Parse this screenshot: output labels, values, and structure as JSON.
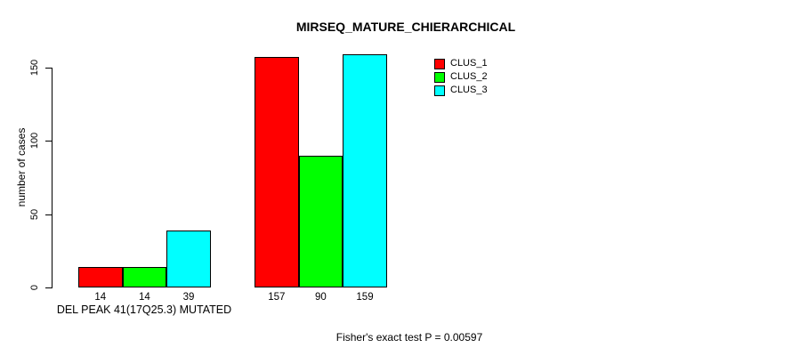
{
  "chart_data": {
    "type": "bar",
    "title": "MIRSEQ_MATURE_CHIERARCHICAL",
    "ylabel": "number of cases",
    "xlabel": "",
    "ylim": [
      0,
      150
    ],
    "yticks": [
      0,
      50,
      100,
      150
    ],
    "series": [
      {
        "name": "CLUS_1",
        "color": "#ff0000",
        "values": [
          14,
          157
        ]
      },
      {
        "name": "CLUS_2",
        "color": "#00ff00",
        "values": [
          14,
          90
        ]
      },
      {
        "name": "CLUS_3",
        "color": "#00ffff",
        "values": [
          39,
          159
        ]
      }
    ],
    "groups": [
      {
        "label": "DEL PEAK 41(17Q25.3) MUTATED"
      },
      {
        "label": ""
      }
    ],
    "bar_value_labels": [
      [
        "14",
        "14",
        "39"
      ],
      [
        "157",
        "90",
        "159"
      ]
    ],
    "annotation": "Fisher's exact test P = 0.00597",
    "legend": {
      "position": "top-right",
      "entries": [
        "CLUS_1",
        "CLUS_2",
        "CLUS_3"
      ]
    },
    "grid": false,
    "axis_color": "#000000",
    "background_color": "#ffffff"
  }
}
